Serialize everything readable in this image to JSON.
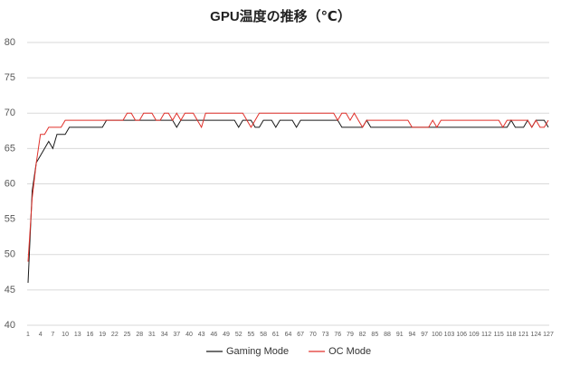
{
  "chart_data": {
    "type": "line",
    "title": "GPU温度の推移（℃）",
    "categories": [
      1,
      null,
      null,
      4,
      null,
      null,
      7,
      null,
      null,
      10,
      null,
      null,
      13,
      null,
      null,
      16,
      null,
      null,
      19,
      null,
      null,
      22,
      null,
      null,
      25,
      null,
      null,
      28,
      null,
      null,
      31,
      null,
      null,
      34,
      null,
      null,
      37,
      null,
      null,
      40,
      null,
      null,
      43,
      null,
      null,
      46,
      null,
      null,
      49,
      null,
      null,
      52,
      null,
      null,
      55,
      null,
      null,
      58,
      null,
      null,
      61,
      null,
      null,
      64,
      null,
      null,
      67,
      null,
      null,
      70,
      null,
      null,
      73,
      null,
      null,
      76,
      null,
      null,
      79,
      null,
      null,
      82,
      null,
      null,
      85,
      null,
      null,
      88,
      null,
      null,
      91,
      null,
      null,
      94,
      null,
      null,
      97,
      null,
      null,
      100,
      null,
      null,
      103,
      null,
      null,
      106,
      null,
      null,
      109,
      null,
      null,
      112,
      null,
      null,
      115,
      null,
      null,
      118,
      null,
      null,
      121,
      null,
      null,
      124,
      null,
      null,
      127
    ],
    "series": [
      {
        "name": "Gaming Mode",
        "color": "#1a1a1a",
        "values": [
          46,
          59,
          63,
          64,
          65,
          66,
          65,
          67,
          67,
          67,
          68,
          68,
          68,
          68,
          68,
          68,
          68,
          68,
          68,
          69,
          69,
          69,
          69,
          69,
          69,
          69,
          69,
          69,
          69,
          69,
          69,
          69,
          69,
          69,
          69,
          69,
          68,
          69,
          69,
          69,
          69,
          69,
          69,
          69,
          69,
          69,
          69,
          69,
          69,
          69,
          69,
          68,
          69,
          69,
          69,
          68,
          68,
          69,
          69,
          69,
          68,
          69,
          69,
          69,
          69,
          68,
          69,
          69,
          69,
          69,
          69,
          69,
          69,
          69,
          69,
          69,
          68,
          68,
          68,
          68,
          68,
          68,
          69,
          68,
          68,
          68,
          68,
          68,
          68,
          68,
          68,
          68,
          68,
          68,
          68,
          68,
          68,
          68,
          68,
          68,
          68,
          68,
          68,
          68,
          68,
          68,
          68,
          68,
          68,
          68,
          68,
          68,
          68,
          68,
          68,
          68,
          68,
          69,
          68,
          68,
          68,
          69,
          68,
          69,
          69,
          69,
          68
        ]
      },
      {
        "name": "OC Mode",
        "color": "#e0302a",
        "values": [
          49,
          58,
          63,
          67,
          67,
          68,
          68,
          68,
          68,
          69,
          69,
          69,
          69,
          69,
          69,
          69,
          69,
          69,
          69,
          69,
          69,
          69,
          69,
          69,
          70,
          70,
          69,
          69,
          70,
          70,
          70,
          69,
          69,
          70,
          70,
          69,
          70,
          69,
          70,
          70,
          70,
          69,
          68,
          70,
          70,
          70,
          70,
          70,
          70,
          70,
          70,
          70,
          70,
          69,
          68,
          69,
          70,
          70,
          70,
          70,
          70,
          70,
          70,
          70,
          70,
          70,
          70,
          70,
          70,
          70,
          70,
          70,
          70,
          70,
          70,
          69,
          70,
          70,
          69,
          70,
          69,
          68,
          69,
          69,
          69,
          69,
          69,
          69,
          69,
          69,
          69,
          69,
          69,
          68,
          68,
          68,
          68,
          68,
          69,
          68,
          69,
          69,
          69,
          69,
          69,
          69,
          69,
          69,
          69,
          69,
          69,
          69,
          69,
          69,
          69,
          68,
          69,
          69,
          69,
          69,
          69,
          69,
          68,
          69,
          68,
          68,
          69
        ]
      }
    ],
    "ylim": [
      40,
      80
    ],
    "yticks": [
      40,
      45,
      50,
      55,
      60,
      65,
      70,
      75,
      80
    ],
    "grid": true,
    "legend": "bottom"
  }
}
